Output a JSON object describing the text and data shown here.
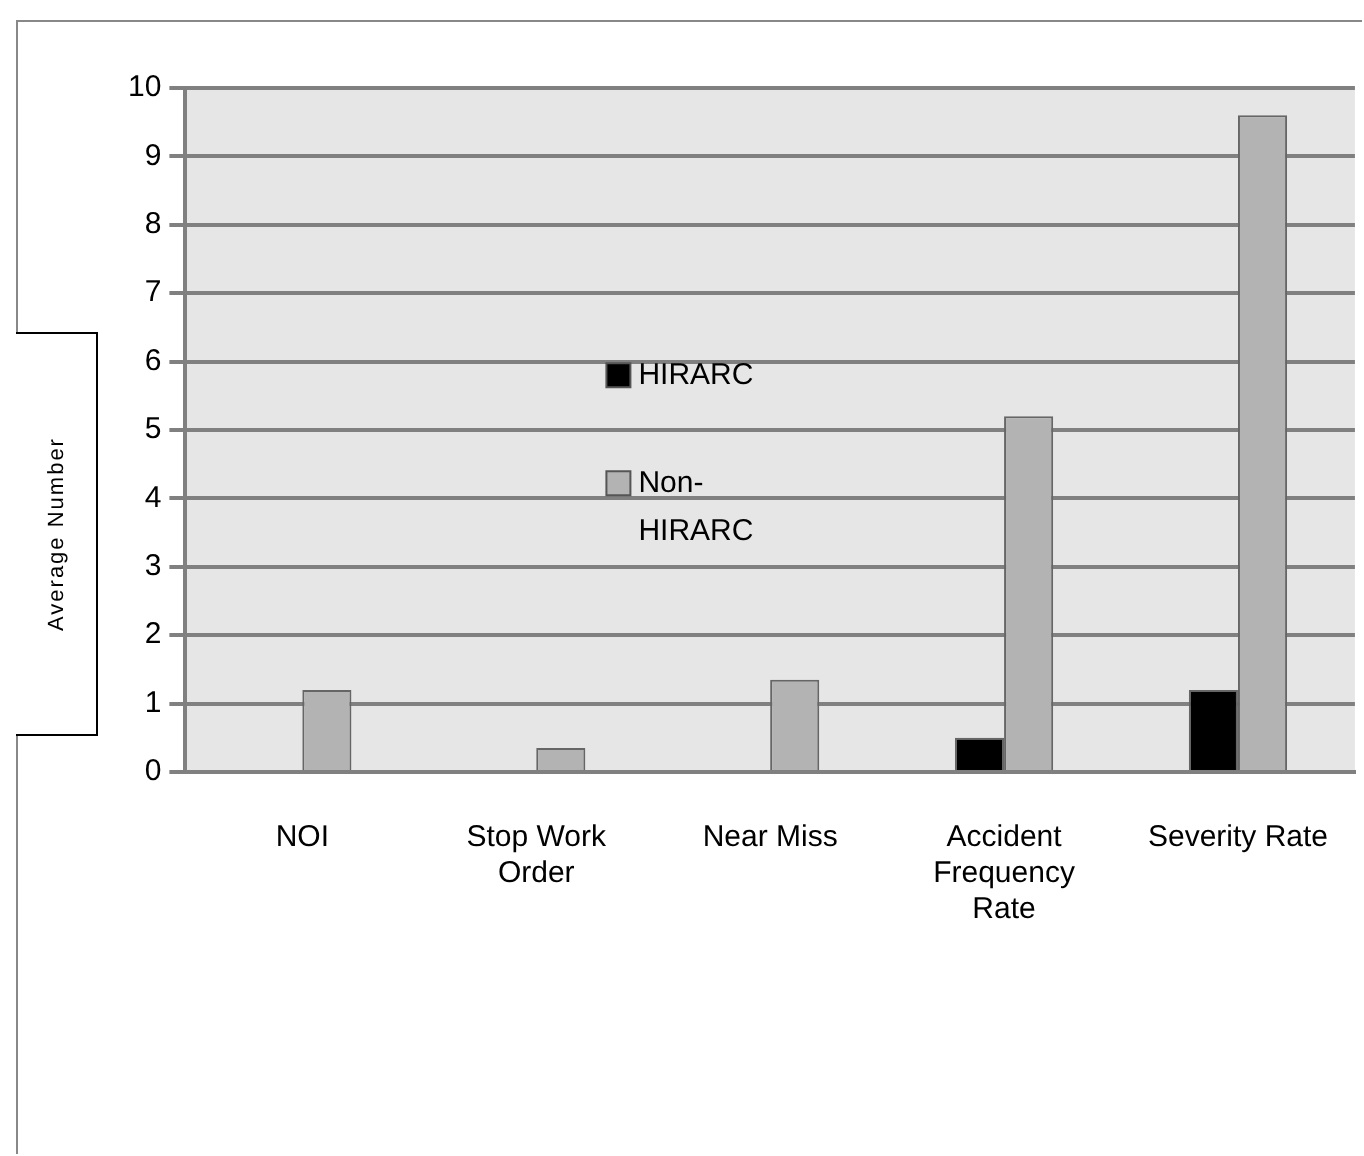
{
  "chart_data": {
    "type": "bar",
    "ylabel": "Average Number",
    "categories": [
      "NOI",
      "Stop Work Order",
      "Near Miss",
      "Accident Frequency Rate",
      "Severity Rate"
    ],
    "series": [
      {
        "name": "HIRARC",
        "color": "#000000",
        "values": [
          0,
          0,
          0,
          0.5,
          1.2
        ]
      },
      {
        "name": "Non-HIRARC",
        "color": "#b3b3b3",
        "values": [
          1.2,
          0.35,
          1.35,
          5.2,
          9.6
        ]
      }
    ],
    "ylim": [
      0,
      10
    ],
    "yticks": [
      0,
      1,
      2,
      3,
      4,
      5,
      6,
      7,
      8,
      9,
      10
    ],
    "grid": "y",
    "legend": "center"
  }
}
